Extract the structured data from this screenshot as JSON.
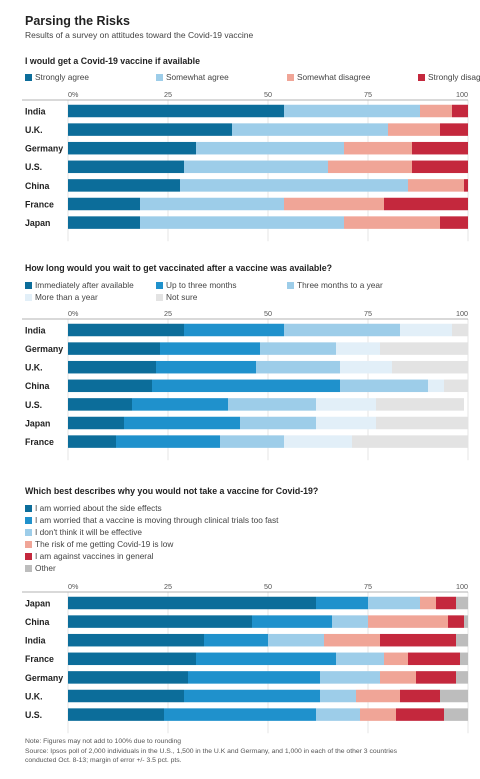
{
  "header": {
    "title": "Parsing the Risks",
    "subtitle": "Results of a survey on attitudes toward the Covid-19 vaccine"
  },
  "charts_meta": [
    {
      "legend_layout": [
        [
          0,
          0
        ],
        [
          1,
          0
        ],
        [
          2,
          0
        ],
        [
          3,
          0
        ]
      ]
    },
    {
      "legend_layout": [
        [
          0,
          0
        ],
        [
          1,
          0
        ],
        [
          2,
          0
        ],
        [
          0,
          1
        ],
        [
          1,
          1
        ]
      ]
    },
    {
      "legend_layout": [
        [
          0,
          0
        ],
        [
          0,
          1
        ],
        [
          0,
          2
        ],
        [
          0,
          3
        ],
        [
          0,
          4
        ],
        [
          0,
          5
        ]
      ]
    }
  ],
  "chart_data": [
    {
      "type": "bar",
      "stacked": "horizontal",
      "title": "I would get a Covid-19 vaccine if available",
      "ticks": [
        "0%",
        "25",
        "50",
        "75",
        "100"
      ],
      "xlim": [
        0,
        100
      ],
      "categories": [
        "India",
        "U.K.",
        "Germany",
        "U.S.",
        "China",
        "France",
        "Japan"
      ],
      "series": [
        {
          "name": "Strongly agree",
          "color": "#0c6d9a",
          "values": [
            54,
            41,
            32,
            29,
            28,
            18,
            18
          ]
        },
        {
          "name": "Somewhat agree",
          "color": "#9dcde9",
          "values": [
            34,
            39,
            37,
            36,
            57,
            36,
            51
          ]
        },
        {
          "name": "Somewhat disagree",
          "color": "#f0a597",
          "values": [
            8,
            13,
            17,
            21,
            14,
            25,
            24
          ]
        },
        {
          "name": "Strongly disagree",
          "color": "#c4283d",
          "values": [
            4,
            7,
            14,
            14,
            1,
            21,
            7
          ]
        }
      ]
    },
    {
      "type": "bar",
      "stacked": "horizontal",
      "title": "How long would you wait to get vaccinated after a vaccine was available?",
      "ticks": [
        "0%",
        "25",
        "50",
        "75",
        "100"
      ],
      "xlim": [
        0,
        100
      ],
      "categories": [
        "India",
        "Germany",
        "U.K.",
        "China",
        "U.S.",
        "Japan",
        "France"
      ],
      "series": [
        {
          "name": "Immediately after available",
          "color": "#0c6d9a",
          "values": [
            29,
            23,
            22,
            21,
            16,
            14,
            12
          ]
        },
        {
          "name": "Up to three months",
          "color": "#1f91cc",
          "values": [
            25,
            25,
            25,
            47,
            24,
            29,
            26
          ]
        },
        {
          "name": "Three months to a year",
          "color": "#9dcde9",
          "values": [
            29,
            19,
            21,
            22,
            22,
            19,
            16
          ]
        },
        {
          "name": "More than a year",
          "color": "#e2eff8",
          "values": [
            13,
            11,
            13,
            4,
            15,
            15,
            17
          ]
        },
        {
          "name": "Not sure",
          "color": "#e3e3e3",
          "values": [
            4,
            22,
            19,
            6,
            22,
            23,
            29
          ]
        }
      ]
    },
    {
      "type": "bar",
      "stacked": "horizontal",
      "title": "Which best describes why you would not take a vaccine for Covid-19?",
      "ticks": [
        "0%",
        "25",
        "50",
        "75",
        "100"
      ],
      "xlim": [
        0,
        100
      ],
      "categories": [
        "Japan",
        "China",
        "India",
        "France",
        "Germany",
        "U.K.",
        "U.S."
      ],
      "series": [
        {
          "name": "I am worried about the side effects",
          "color": "#0c6d9a",
          "values": [
            62,
            46,
            34,
            32,
            30,
            29,
            24
          ]
        },
        {
          "name": "I am worried that a vaccine is moving through clinical trials too fast",
          "color": "#1f91cc",
          "values": [
            13,
            20,
            16,
            35,
            33,
            34,
            38
          ]
        },
        {
          "name": "I don't think it will be effective",
          "color": "#9dcde9",
          "values": [
            13,
            9,
            14,
            12,
            15,
            9,
            11
          ]
        },
        {
          "name": "The risk of me getting Covid-19 is low",
          "color": "#f0a597",
          "values": [
            4,
            20,
            14,
            6,
            9,
            11,
            9
          ]
        },
        {
          "name": "I am against vaccines in general",
          "color": "#c4283d",
          "values": [
            5,
            4,
            19,
            13,
            10,
            10,
            12
          ]
        },
        {
          "name": "Other",
          "color": "#bdbdbd",
          "values": [
            3,
            1,
            3,
            2,
            3,
            7,
            6
          ]
        }
      ]
    }
  ],
  "footnote": {
    "line1": "Note: Figures may not add to 100% due to rounding",
    "line2": "Source: Ipsos poll of 2,000 individuals in the U.S., 1,500 in the U.K and Germany, and 1,000 in each of the other 3 countries",
    "line3": "conducted Oct. 8-13; margin of error +/- 3.5 pct. pts."
  }
}
